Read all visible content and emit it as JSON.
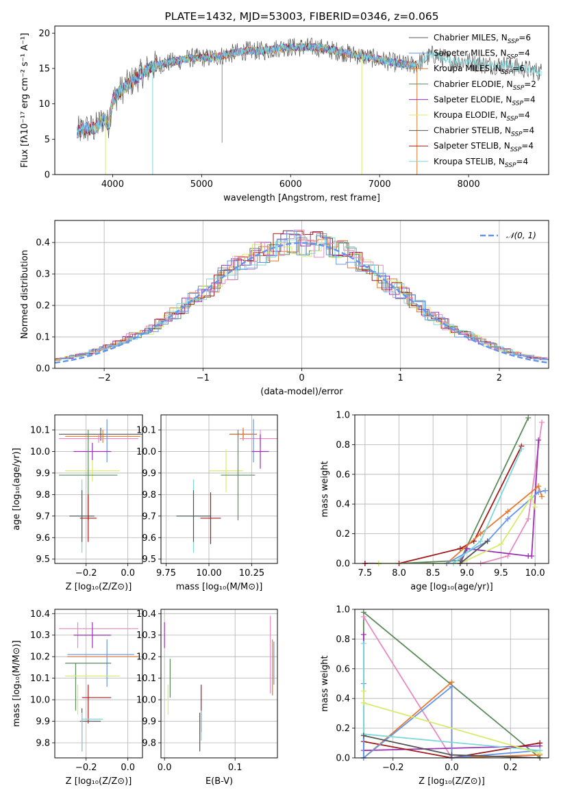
{
  "colors": {
    "blue": "#6495ED",
    "orange": "#E8792E",
    "green": "#5A8A5A",
    "purple": "#9A2FB5",
    "yellow": "#D4EC6A",
    "darkred": "#A01818",
    "pink": "#E88AC0",
    "cyan": "#7DD8DC",
    "gray": "#8C8C8C",
    "darkgray": "#555555"
  },
  "chart_data": [
    {
      "type": "line",
      "title": "PLATE=1432, MJD=53003, FIBERID=0346, z=0.065",
      "xlabel": "wavelength [Angstrom, rest frame]",
      "ylabel": "Flux [fλ10⁻¹⁷ erg cm⁻² s⁻¹ A⁻¹]",
      "xlim": [
        3350,
        8900
      ],
      "ylim": [
        0,
        21
      ],
      "xticks": [
        4000,
        5000,
        6000,
        7000,
        8000
      ],
      "yticks": [
        0,
        5,
        10,
        15,
        20
      ],
      "grid": false,
      "legend_position": "right",
      "legend": [
        {
          "label": "Chabrier MILES, N",
          "sub": "SSP",
          "suffix": "=6",
          "color": "darkgray"
        },
        {
          "label": "Salpeter MILES, N",
          "sub": "SSP",
          "suffix": "=4",
          "color": "blue"
        },
        {
          "label": "Kroupa MILES, N",
          "sub": "SSP",
          "suffix": "=6",
          "color": "orange"
        },
        {
          "label": "Chabrier ELODIE, N",
          "sub": "SSP",
          "suffix": "=2",
          "color": "green"
        },
        {
          "label": "Salpeter ELODIE, N",
          "sub": "SSP",
          "suffix": "=4",
          "color": "purple"
        },
        {
          "label": "Kroupa ELODIE, N",
          "sub": "SSP",
          "suffix": "=4",
          "color": "yellow"
        },
        {
          "label": "Chabrier STELIB, N",
          "sub": "SSP",
          "suffix": "=4",
          "color": "darkgray"
        },
        {
          "label": "Salpeter STELIB, N",
          "sub": "SSP",
          "suffix": "=4",
          "color": "darkred"
        },
        {
          "label": "Kroupa STELIB, N",
          "sub": "SSP",
          "suffix": "=4",
          "color": "cyan"
        }
      ],
      "continuum": {
        "x": [
          3600,
          3700,
          3800,
          3900,
          3950,
          4000,
          4100,
          4200,
          4300,
          4400,
          4500,
          4700,
          4900,
          5100,
          5300,
          5500,
          5700,
          5900,
          6100,
          6300,
          6500,
          6700,
          6900,
          7100,
          7300,
          7400,
          7600,
          7800,
          8000,
          8200,
          8400,
          8600,
          8800
        ],
        "y": [
          6,
          6.5,
          6.5,
          8,
          7,
          10.5,
          12,
          13,
          14,
          15,
          15.5,
          16,
          16.5,
          16.5,
          17,
          17.5,
          17.5,
          18,
          18,
          18,
          17.5,
          17,
          16.5,
          16,
          15.5,
          15.5,
          17,
          16,
          16,
          15.5,
          15.5,
          15,
          14.5
        ]
      }
    },
    {
      "type": "line",
      "xlabel": "(data-model)/error",
      "ylabel": "Normed distribution",
      "xlim": [
        -2.5,
        2.5
      ],
      "ylim": [
        0,
        0.47
      ],
      "xticks": [
        -2,
        -1,
        0,
        1,
        2
      ],
      "yticks": [
        0.0,
        0.1,
        0.2,
        0.3,
        0.4
      ],
      "grid": true,
      "legend_position": "upper right",
      "legend": [
        {
          "label": "𝒩(0, 1)",
          "color": "blue"
        }
      ],
      "bin_width": 0.1,
      "hist_series": [
        {
          "color": "gray"
        },
        {
          "color": "orange"
        },
        {
          "color": "green"
        },
        {
          "color": "purple"
        },
        {
          "color": "yellow"
        },
        {
          "color": "darkred"
        },
        {
          "color": "pink"
        },
        {
          "color": "cyan"
        },
        {
          "color": "blue"
        }
      ]
    },
    {
      "type": "scatter",
      "xlabel": "Z [log₁₀(Z/Z⊙)]",
      "ylabel": "age  [log₁₀(age/yr)]",
      "xlim": [
        -0.35,
        0.07
      ],
      "ylim": [
        9.48,
        10.17
      ],
      "xticks": [
        -0.2,
        0.0
      ],
      "yticks": [
        9.5,
        9.6,
        9.7,
        9.8,
        9.9,
        10.0,
        10.1
      ],
      "grid": true,
      "points": [
        {
          "x": -0.13,
          "y": 10.08,
          "xerr": 0.2,
          "yerr": 0.03,
          "color": "darkgray"
        },
        {
          "x": -0.12,
          "y": 10.07,
          "xerr": 0.18,
          "yerr": 0.03,
          "color": "orange"
        },
        {
          "x": -0.14,
          "y": 10.06,
          "xerr": 0.19,
          "yerr": 0.02,
          "color": "pink"
        },
        {
          "x": -0.1,
          "y": 10.05,
          "xerr": 0.0,
          "yerr": 0.1,
          "color": "blue"
        },
        {
          "x": -0.17,
          "y": 10.0,
          "xerr": 0.09,
          "yerr": 0.04,
          "color": "purple"
        },
        {
          "x": -0.17,
          "y": 9.91,
          "xerr": 0.13,
          "yerr": 0.05,
          "color": "yellow"
        },
        {
          "x": -0.19,
          "y": 9.89,
          "xerr": 0.14,
          "yerr": 0.21,
          "color": "green"
        },
        {
          "x": -0.22,
          "y": 9.7,
          "xerr": 0.06,
          "yerr": 0.17,
          "color": "cyan"
        },
        {
          "x": -0.22,
          "y": 9.7,
          "xerr": 0.06,
          "yerr": 0.12,
          "color": "darkgray"
        },
        {
          "x": -0.19,
          "y": 9.69,
          "xerr": 0.04,
          "yerr": 0.11,
          "color": "darkred"
        }
      ]
    },
    {
      "type": "scatter",
      "xlabel": "mass [log₁₀(M/M⊙)]",
      "ylabel": "",
      "xlim": [
        9.72,
        10.4
      ],
      "ylim": [
        9.48,
        10.17
      ],
      "xticks": [
        9.75,
        10.0,
        10.25
      ],
      "yticks": [
        9.5,
        9.6,
        9.7,
        9.8,
        9.9,
        10.0,
        10.1
      ],
      "grid": true,
      "points": [
        {
          "x": 10.2,
          "y": 10.08,
          "xerr": 0.08,
          "yerr": 0.02,
          "color": "darkgray"
        },
        {
          "x": 10.2,
          "y": 10.08,
          "xerr": 0.08,
          "yerr": 0.03,
          "color": "orange"
        },
        {
          "x": 10.3,
          "y": 10.06,
          "xerr": 0.12,
          "yerr": 0.04,
          "color": "pink"
        },
        {
          "x": 10.26,
          "y": 10.05,
          "xerr": 0.0,
          "yerr": 0.1,
          "color": "blue"
        },
        {
          "x": 10.3,
          "y": 10.0,
          "xerr": 0.05,
          "yerr": 0.08,
          "color": "purple"
        },
        {
          "x": 10.1,
          "y": 9.91,
          "xerr": 0.1,
          "yerr": 0.1,
          "color": "yellow"
        },
        {
          "x": 10.17,
          "y": 9.89,
          "xerr": 0.1,
          "yerr": 0.21,
          "color": "green"
        },
        {
          "x": 9.91,
          "y": 9.7,
          "xerr": 0.1,
          "yerr": 0.17,
          "color": "cyan"
        },
        {
          "x": 9.91,
          "y": 9.7,
          "xerr": 0.1,
          "yerr": 0.12,
          "color": "darkgray"
        },
        {
          "x": 10.01,
          "y": 9.69,
          "xerr": 0.06,
          "yerr": 0.12,
          "color": "darkred"
        }
      ]
    },
    {
      "type": "line",
      "xlabel": "age  [log₁₀(age/yr)]",
      "ylabel": "mass weight",
      "xlim": [
        7.35,
        10.2
      ],
      "ylim": [
        0,
        1.0
      ],
      "xticks": [
        7.5,
        8.0,
        8.5,
        9.0,
        9.5,
        10.0
      ],
      "yticks": [
        0.0,
        0.2,
        0.4,
        0.6,
        0.8,
        1.0
      ],
      "grid": true,
      "series": [
        {
          "color": "green",
          "x": [
            7.7,
            8.0,
            8.9,
            9.9
          ],
          "y": [
            0.0,
            0.0,
            0.02,
            0.98
          ]
        },
        {
          "color": "pink",
          "x": [
            7.7,
            9.2,
            9.6,
            9.9,
            10.1
          ],
          "y": [
            0.0,
            0.0,
            0.05,
            0.3,
            0.95
          ]
        },
        {
          "color": "purple",
          "x": [
            7.5,
            8.9,
            9.0,
            9.9,
            9.95,
            10.05
          ],
          "y": [
            0.0,
            0.0,
            0.1,
            0.05,
            0.05,
            0.83
          ]
        },
        {
          "color": "darkred",
          "x": [
            7.5,
            8.0,
            8.9,
            9.1,
            9.8
          ],
          "y": [
            0.0,
            0.0,
            0.1,
            0.15,
            0.79
          ]
        },
        {
          "color": "orange",
          "x": [
            7.7,
            8.7,
            9.2,
            9.6,
            10.05,
            10.1
          ],
          "y": [
            0.0,
            0.0,
            0.2,
            0.35,
            0.52,
            0.45
          ]
        },
        {
          "color": "blue",
          "x": [
            7.7,
            8.7,
            9.3,
            9.6,
            10.05,
            10.15
          ],
          "y": [
            0.0,
            0.0,
            0.15,
            0.3,
            0.48,
            0.49
          ]
        },
        {
          "color": "cyan",
          "x": [
            7.7,
            8.8,
            9.2,
            9.8
          ],
          "y": [
            0.0,
            0.0,
            0.15,
            0.77
          ]
        },
        {
          "color": "yellow",
          "x": [
            7.7,
            8.9,
            9.5,
            9.95,
            10.0
          ],
          "y": [
            0.0,
            0.0,
            0.13,
            0.45,
            0.38
          ]
        },
        {
          "color": "darkgray",
          "x": [
            8.9,
            9.3
          ],
          "y": [
            0.0,
            0.15
          ]
        }
      ]
    },
    {
      "type": "scatter",
      "xlabel": "Z [log₁₀(Z/Z⊙)]",
      "ylabel": "mass [log₁₀(M/M⊙)]",
      "xlim": [
        -0.35,
        0.07
      ],
      "ylim": [
        9.73,
        10.42
      ],
      "xticks": [
        -0.2,
        0.0
      ],
      "yticks": [
        9.8,
        9.9,
        10.0,
        10.1,
        10.2,
        10.3,
        10.4
      ],
      "grid": true,
      "points": [
        {
          "x": -0.14,
          "y": 10.33,
          "xerr": 0.19,
          "yerr": 0.0,
          "color": "pink"
        },
        {
          "x": -0.24,
          "y": 10.3,
          "xerr": 0.0,
          "yerr": 0.06,
          "color": "pink"
        },
        {
          "x": -0.17,
          "y": 10.3,
          "xerr": 0.09,
          "yerr": 0.06,
          "color": "purple"
        },
        {
          "x": -0.13,
          "y": 10.21,
          "xerr": 0.16,
          "yerr": 0.0,
          "color": "blue"
        },
        {
          "x": -0.1,
          "y": 10.17,
          "xerr": 0.0,
          "yerr": 0.11,
          "color": "blue"
        },
        {
          "x": -0.12,
          "y": 10.2,
          "xerr": 0.17,
          "yerr": 0.0,
          "color": "orange"
        },
        {
          "x": -0.19,
          "y": 10.17,
          "xerr": 0.11,
          "yerr": 0.0,
          "color": "green"
        },
        {
          "x": -0.25,
          "y": 10.06,
          "xerr": 0.0,
          "yerr": 0.11,
          "color": "green"
        },
        {
          "x": -0.17,
          "y": 10.11,
          "xerr": 0.13,
          "yerr": 0.0,
          "color": "yellow"
        },
        {
          "x": -0.24,
          "y": 10.0,
          "xerr": 0.0,
          "yerr": 0.07,
          "color": "yellow"
        },
        {
          "x": -0.15,
          "y": 10.01,
          "xerr": 0.07,
          "yerr": 0.0,
          "color": "darkred"
        },
        {
          "x": -0.19,
          "y": 9.98,
          "xerr": 0.0,
          "yerr": 0.09,
          "color": "darkred"
        },
        {
          "x": -0.18,
          "y": 9.9,
          "xerr": 0.05,
          "yerr": 0.0,
          "color": "darkgray"
        },
        {
          "x": -0.22,
          "y": 9.86,
          "xerr": 0.0,
          "yerr": 0.1,
          "color": "darkgray"
        },
        {
          "x": -0.17,
          "y": 9.91,
          "xerr": 0.05,
          "yerr": 0.0,
          "color": "cyan"
        },
        {
          "x": -0.22,
          "y": 9.85,
          "xerr": 0.0,
          "yerr": 0.09,
          "color": "cyan"
        }
      ]
    },
    {
      "type": "scatter",
      "xlabel": "E(B-V)",
      "ylabel": "",
      "xlim": [
        -0.005,
        0.16
      ],
      "ylim": [
        9.73,
        10.42
      ],
      "xticks": [
        0.0,
        0.1
      ],
      "yticks": [
        9.8,
        9.9,
        10.0,
        10.1,
        10.2,
        10.3,
        10.4
      ],
      "grid": true,
      "points": [
        {
          "x": 0.0,
          "y": 10.3,
          "yerr": 0.06,
          "color": "purple"
        },
        {
          "x": 0.008,
          "y": 10.1,
          "yerr": 0.09,
          "color": "green"
        },
        {
          "x": 0.005,
          "y": 10.0,
          "yerr": 0.07,
          "color": "yellow"
        },
        {
          "x": 0.052,
          "y": 9.96,
          "yerr": 0.11,
          "color": "darkred"
        },
        {
          "x": 0.05,
          "y": 9.85,
          "yerr": 0.09,
          "color": "darkgray"
        },
        {
          "x": 0.052,
          "y": 9.88,
          "yerr": 0.07,
          "color": "cyan"
        },
        {
          "x": 0.15,
          "y": 10.21,
          "yerr": 0.18,
          "color": "pink"
        },
        {
          "x": 0.153,
          "y": 10.15,
          "yerr": 0.13,
          "color": "orange"
        },
        {
          "x": 0.155,
          "y": 10.17,
          "yerr": 0.1,
          "color": "blue"
        }
      ]
    },
    {
      "type": "line",
      "xlabel": "Z [log₁₀(Z/Z⊙)]",
      "ylabel": "mass weight",
      "xlim": [
        -0.33,
        0.33
      ],
      "ylim": [
        0,
        1.0
      ],
      "xticks": [
        -0.2,
        0.0,
        0.2
      ],
      "yticks": [
        0.0,
        0.2,
        0.4,
        0.6,
        0.8,
        1.0
      ],
      "grid": true,
      "series": [
        {
          "color": "green",
          "x": [
            -0.3,
            -0.3,
            0.3
          ],
          "y": [
            0.0,
            0.98,
            0.0
          ]
        },
        {
          "color": "pink",
          "x": [
            -0.3,
            0.0,
            0.0,
            0.3
          ],
          "y": [
            0.95,
            0.0,
            0.0,
            0.02
          ]
        },
        {
          "color": "purple",
          "x": [
            -0.3,
            -0.3,
            0.3
          ],
          "y": [
            0.83,
            0.05,
            0.08
          ]
        },
        {
          "color": "darkred",
          "x": [
            -0.3,
            0.0,
            0.3
          ],
          "y": [
            0.11,
            0.0,
            0.1
          ]
        },
        {
          "color": "orange",
          "x": [
            -0.3,
            0.0,
            0.0,
            0.3
          ],
          "y": [
            0.0,
            0.51,
            0.0,
            0.02
          ]
        },
        {
          "color": "blue",
          "x": [
            -0.3,
            -0.3,
            0.0,
            0.0,
            0.3
          ],
          "y": [
            0.5,
            0.0,
            0.48,
            0.0,
            0.05
          ]
        },
        {
          "color": "cyan",
          "x": [
            -0.3,
            -0.3,
            0.3
          ],
          "y": [
            0.77,
            0.16,
            0.05
          ]
        },
        {
          "color": "yellow",
          "x": [
            -0.3,
            -0.3,
            0.3
          ],
          "y": [
            0.45,
            0.37,
            0.03
          ]
        },
        {
          "color": "darkgray",
          "x": [
            -0.3,
            0.0,
            0.3
          ],
          "y": [
            0.15,
            0.02,
            0.0
          ]
        }
      ]
    }
  ]
}
